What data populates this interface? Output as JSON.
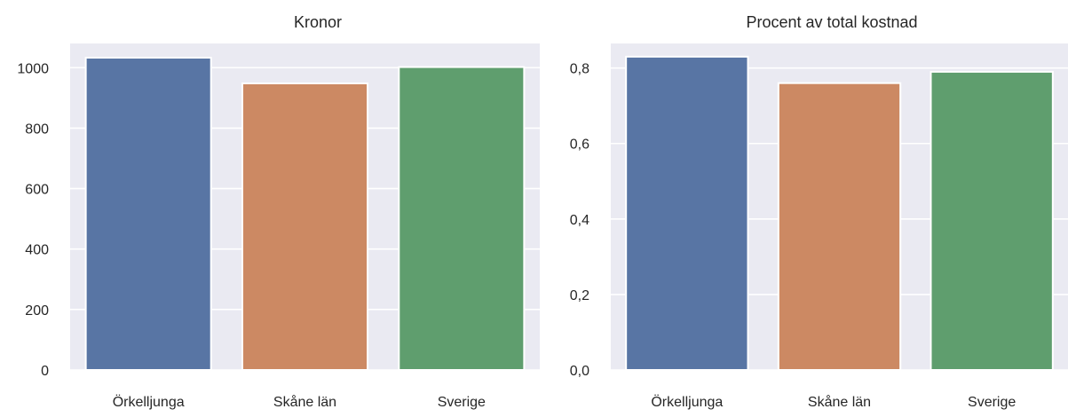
{
  "charts": [
    {
      "title": "Kronor",
      "ticks": [
        "0",
        "200",
        "400",
        "600",
        "800",
        "1000"
      ]
    },
    {
      "title": "Procent av total kostnad",
      "ticks": [
        "0,0",
        "0,2",
        "0,4",
        "0,6",
        "0,8"
      ]
    }
  ],
  "chart_data": [
    {
      "type": "bar",
      "title": "Kronor",
      "xlabel": "",
      "ylabel": "",
      "categories": [
        "Örkelljunga",
        "Skåne län",
        "Sverige"
      ],
      "values": [
        1033,
        948,
        1002
      ],
      "colors": [
        "#5875a4",
        "#cc8963",
        "#5f9e6e"
      ],
      "ylim": [
        0,
        1080
      ],
      "yticks": [
        0,
        200,
        400,
        600,
        800,
        1000
      ],
      "grid": true,
      "background": "#eaeaf2"
    },
    {
      "type": "bar",
      "title": "Procent av total kostnad",
      "xlabel": "",
      "ylabel": "",
      "categories": [
        "Örkelljunga",
        "Skåne län",
        "Sverige"
      ],
      "values": [
        0.83,
        0.76,
        0.79
      ],
      "colors": [
        "#5875a4",
        "#cc8963",
        "#5f9e6e"
      ],
      "ylim": [
        0,
        0.865
      ],
      "yticks": [
        0,
        0.2,
        0.4,
        0.6,
        0.8
      ],
      "grid": true,
      "background": "#eaeaf2"
    }
  ]
}
